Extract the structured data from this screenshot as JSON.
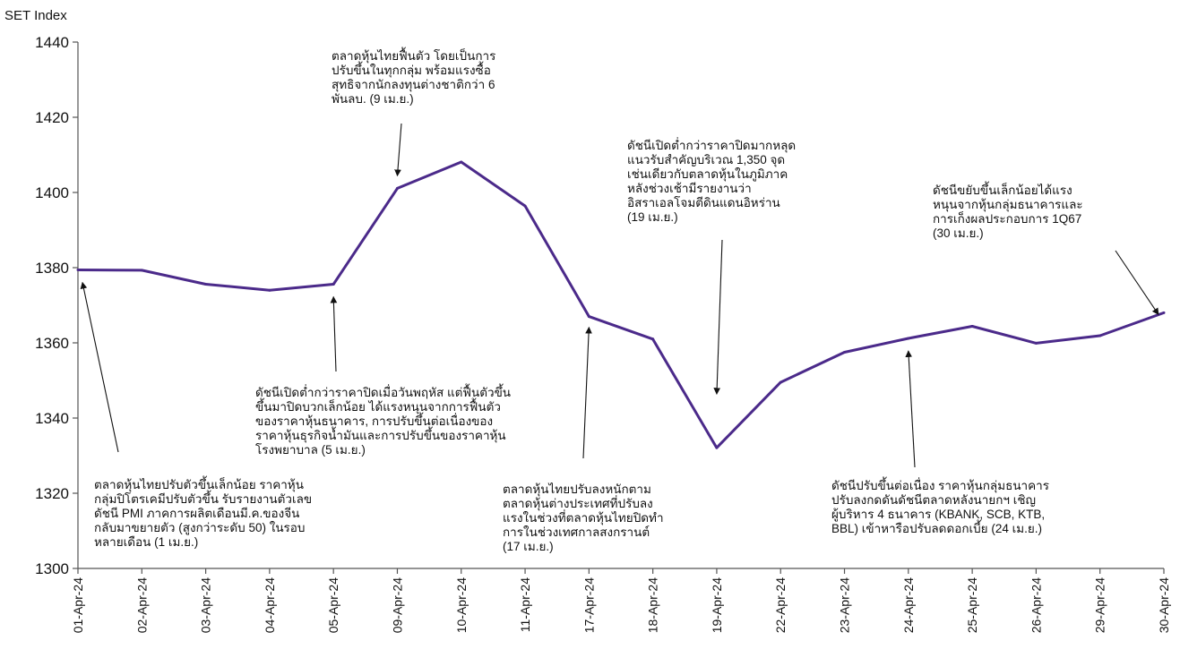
{
  "chart_data": {
    "type": "line",
    "title": "",
    "ylabel": "SET Index",
    "xlabel": "",
    "ylim": [
      1300,
      1440
    ],
    "yticks": [
      1300,
      1320,
      1340,
      1360,
      1380,
      1400,
      1420,
      1440
    ],
    "grid": false,
    "categories": [
      "01-Apr-24",
      "02-Apr-24",
      "03-Apr-24",
      "04-Apr-24",
      "05-Apr-24",
      "09-Apr-24",
      "10-Apr-24",
      "11-Apr-24",
      "17-Apr-24",
      "18-Apr-24",
      "19-Apr-24",
      "22-Apr-24",
      "23-Apr-24",
      "24-Apr-24",
      "25-Apr-24",
      "26-Apr-24",
      "29-Apr-24",
      "30-Apr-24"
    ],
    "series": [
      {
        "color": "#4b2a8a",
        "values": [
          1379.4,
          1379.3,
          1375.6,
          1374.0,
          1375.6,
          1401.1,
          1408.1,
          1396.4,
          1367.0,
          1361.0,
          1332.1,
          1349.5,
          1357.5,
          1361.2,
          1364.4,
          1359.9,
          1361.9,
          1368.0
        ]
      }
    ],
    "annotations": [
      {
        "lines": [
          "ตลาดหุ้นไทยปรับตัวขึ้นเล็กน้อย ราคาหุ้น",
          "กลุ่มปิโตรเคมีปรับตัวขึ้น รับรายงานตัวเลข",
          "ดัชนี PMI ภาคการผลิตเดือนมี.ค.ของจีน",
          "กลับมาขยายตัว (สูงกว่าระดับ 50) ในรอบ",
          "หลายเดือน (1 เม.ย.)"
        ]
      },
      {
        "lines": [
          "ดัชนีเปิดต่ำกว่าราคาปิดเมื่อวันพฤหัส แต่ฟื้นตัวขึ้น",
          "ขึ้นมาปิดบวกเล็กน้อย ได้แรงหนุนจากการฟื้นตัว",
          "ของราคาหุ้นธนาคาร, การปรับขึ้นต่อเนื่องของ",
          "ราคาหุ้นธุรกิจน้ำมันและการปรับขึ้นของราคาหุ้น",
          "โรงพยาบาล (5 เม.ย.)"
        ]
      },
      {
        "lines": [
          "ตลาดหุ้นไทยฟื้นตัว โดยเป็นการ",
          "ปรับขึ้นในทุกกลุ่ม พร้อมแรงซื้อ",
          "สุทธิจากนักลงทุนต่างชาติกว่า 6",
          "พันลบ. (9 เม.ย.)"
        ]
      },
      {
        "lines": [
          "ตลาดหุ้นไทยปรับลงหนักตาม",
          "ตลาดหุ้นต่างประเทศที่ปรับลง",
          "แรงในช่วงที่ตลาดหุ้นไทยปิดทำ",
          "การในช่วงเทศกาลสงกรานต์",
          "(17 เม.ย.)"
        ]
      },
      {
        "lines": [
          "ดัชนีเปิดต่ำกว่าราคาปิดมากหลุด",
          "แนวรับสำคัญบริเวณ 1,350 จุด",
          "เช่นเดียวกับตลาดหุ้นในภูมิภาค",
          "หลังช่วงเช้ามีรายงานว่า",
          "อิสราเอลโจมตีดินแดนอิหร่าน",
          "(19 เม.ย.)"
        ]
      },
      {
        "lines": [
          "ดัชนีปรับขึ้นต่อเนื่อง ราคาหุ้นกลุ่มธนาคาร",
          "ปรับลงกดดันดัชนีตลาดหลังนายกฯ เชิญ",
          "ผู้บริหาร 4 ธนาคาร (KBANK, SCB, KTB,",
          "BBL) เข้าหารือปรับลดดอกเบี้ย (24 เม.ย.)"
        ]
      },
      {
        "lines": [
          "ดัชนีขยับขึ้นเล็กน้อยได้แรง",
          "หนุนจากหุ้นกลุ่มธนาคารและ",
          "การเก็งผลประกอบการ 1Q67",
          "(30 เม.ย.)"
        ]
      }
    ]
  }
}
